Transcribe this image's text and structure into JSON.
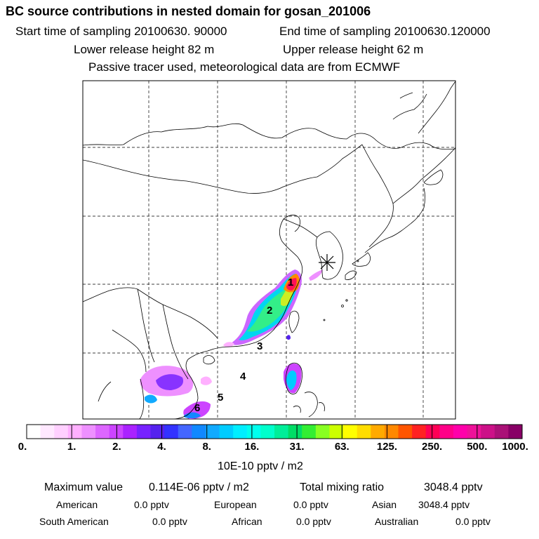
{
  "title": "BC  source contributions in nested domain for gosan_201006",
  "header": {
    "start_time": "Start time of sampling 20100630. 90000",
    "end_time": "End time of sampling 20100630.120000",
    "lower_release": "Lower release height   82 m",
    "upper_release": "Upper release height   62 m",
    "tracer_note": "Passive tracer used, meteorological data are from ECMWF"
  },
  "map": {
    "region_labels": [
      "1",
      "2",
      "3",
      "4",
      "5",
      "6"
    ],
    "receptor_symbol": "asterisk"
  },
  "colorbar": {
    "ticks": [
      "0.",
      "1.",
      "2.",
      "4.",
      "8.",
      "16.",
      "31.",
      "63.",
      "125.",
      "250.",
      "500.",
      "1000."
    ],
    "colors": [
      "#ffffff",
      "#ffe8ff",
      "#ffd0ff",
      "#ffb0ff",
      "#ee90ff",
      "#dd66ff",
      "#cc44ff",
      "#aa22ff",
      "#7722ff",
      "#5522ee",
      "#3333ff",
      "#4466ff",
      "#1188ff",
      "#11aaff",
      "#00ccff",
      "#00eeff",
      "#00ffee",
      "#00ffcc",
      "#00ee99",
      "#00dd66",
      "#33ee33",
      "#88ff22",
      "#ccff00",
      "#ffff00",
      "#ffdd00",
      "#ffaa00",
      "#ff8800",
      "#ff5500",
      "#ff2222",
      "#ff0055",
      "#ff0088",
      "#ff00aa",
      "#ee1199",
      "#cc1188",
      "#aa1177",
      "#880066"
    ],
    "units": "10E-10 pptv / m2"
  },
  "summary": {
    "max_label": "Maximum value",
    "max_value": "0.114E-06 pptv / m2",
    "total_label": "Total mixing ratio",
    "total_value": "3048.4 pptv"
  },
  "contributions": [
    {
      "name": "American",
      "value": "0.0 pptv"
    },
    {
      "name": "European",
      "value": "0.0 pptv"
    },
    {
      "name": "Asian",
      "value": "3048.4 pptv"
    },
    {
      "name": "South American",
      "value": "0.0 pptv"
    },
    {
      "name": "African",
      "value": "0.0 pptv"
    },
    {
      "name": "Australian",
      "value": "0.0 pptv"
    }
  ]
}
